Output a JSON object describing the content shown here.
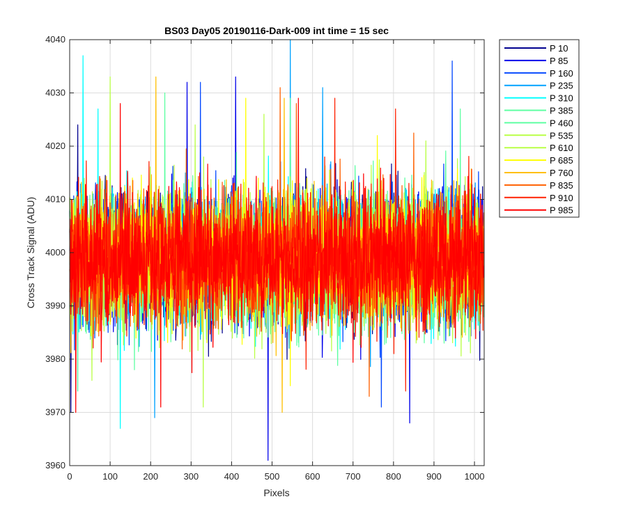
{
  "chart_data": {
    "type": "line",
    "title": "BS03 Day05 20190116-Dark-009 int time = 15 sec",
    "xlabel": "Pixels",
    "ylabel": "Cross Track Signal (ADU)",
    "xlim": [
      0,
      1024
    ],
    "ylim": [
      3960,
      4040
    ],
    "xticks": [
      0,
      100,
      200,
      300,
      400,
      500,
      600,
      700,
      800,
      900,
      1000
    ],
    "yticks": [
      3960,
      3970,
      3980,
      3990,
      4000,
      4010,
      4020,
      4030,
      4040
    ],
    "grid": true,
    "legend_position": "outside-top-right",
    "noise": {
      "baseline": 3999,
      "typical_range": [
        3985,
        4013
      ]
    },
    "series": [
      {
        "name": "P 10",
        "color": "#00008f",
        "extrema": [
          [
            20,
            4024
          ],
          [
            3,
            3970
          ]
        ]
      },
      {
        "name": "P 85",
        "color": "#0000ea",
        "extrema": [
          [
            290,
            4032
          ],
          [
            410,
            4033
          ],
          [
            490,
            3961
          ],
          [
            840,
            3968
          ]
        ]
      },
      {
        "name": "P 160",
        "color": "#0046ff",
        "extrema": [
          [
            323,
            4032
          ],
          [
            945,
            4036
          ],
          [
            770,
            3971
          ]
        ]
      },
      {
        "name": "P 235",
        "color": "#00a2ff",
        "extrema": [
          [
            545,
            4040
          ],
          [
            625,
            4031
          ],
          [
            210,
            3969
          ]
        ]
      },
      {
        "name": "P 310",
        "color": "#00ffff",
        "extrema": [
          [
            33,
            4037
          ],
          [
            70,
            4027
          ],
          [
            125,
            3967
          ]
        ]
      },
      {
        "name": "P 385",
        "color": "#5dffa2",
        "extrema": [
          [
            235,
            4030
          ],
          [
            965,
            4027
          ],
          [
            20,
            3974
          ]
        ]
      },
      {
        "name": "P 460",
        "color": "#5dffa2",
        "extrema": [
          [
            545,
            4029
          ],
          [
            160,
            3978
          ]
        ]
      },
      {
        "name": "P 535",
        "color": "#b9ff46",
        "extrema": [
          [
            480,
            4026
          ],
          [
            880,
            4021
          ],
          [
            55,
            3976
          ]
        ]
      },
      {
        "name": "P 610",
        "color": "#b9ff46",
        "extrema": [
          [
            100,
            4033
          ],
          [
            310,
            4024
          ],
          [
            330,
            3971
          ]
        ]
      },
      {
        "name": "P 685",
        "color": "#ffff00",
        "extrema": [
          [
            435,
            4029
          ],
          [
            760,
            4022
          ],
          [
            545,
            3975
          ]
        ]
      },
      {
        "name": "P 760",
        "color": "#ffbf00",
        "extrema": [
          [
            213,
            4033
          ],
          [
            530,
            4029
          ],
          [
            525,
            3970
          ]
        ]
      },
      {
        "name": "P 835",
        "color": "#ff6000",
        "extrema": [
          [
            520,
            4031
          ],
          [
            560,
            4028
          ],
          [
            740,
            3973
          ]
        ]
      },
      {
        "name": "P 910",
        "color": "#ff2000",
        "extrema": [
          [
            655,
            4029
          ],
          [
            805,
            4027
          ],
          [
            830,
            3974
          ]
        ]
      },
      {
        "name": "P 985",
        "color": "#ff0000",
        "extrema": [
          [
            125,
            4028
          ],
          [
            565,
            4029
          ],
          [
            225,
            3971
          ],
          [
            15,
            3970
          ]
        ]
      }
    ]
  }
}
